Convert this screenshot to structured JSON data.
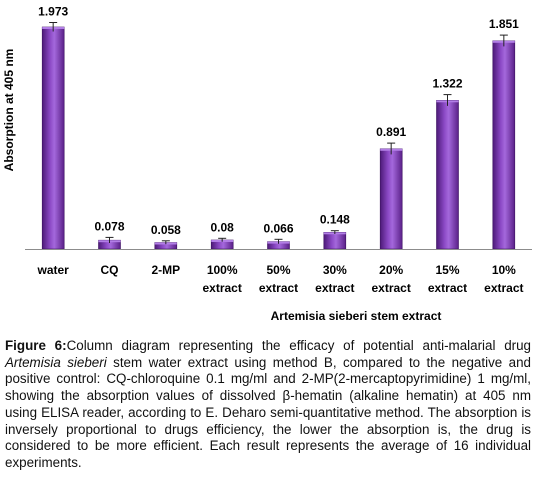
{
  "chart_data": {
    "type": "bar",
    "categories": [
      [
        "water"
      ],
      [
        "CQ"
      ],
      [
        "2-MP"
      ],
      [
        "100%",
        "extract"
      ],
      [
        "50%",
        "extract"
      ],
      [
        "30%",
        "extract"
      ],
      [
        "20%",
        "extract"
      ],
      [
        "15%",
        "extract"
      ],
      [
        "10%",
        "extract"
      ]
    ],
    "values": [
      1.973,
      0.078,
      0.058,
      0.08,
      0.066,
      0.148,
      0.891,
      1.322,
      1.851
    ],
    "value_labels": [
      "1.973",
      "0.078",
      "0.058",
      "0.08",
      "0.066",
      "0.148",
      "0.891",
      "1.322",
      "1.851"
    ],
    "errors": [
      0.04,
      0.025,
      0.015,
      0.015,
      0.02,
      0.015,
      0.05,
      0.05,
      0.05
    ],
    "ylabel": "Absorption at 405 nm",
    "xlabel": "Artemisia sieberi stem extract",
    "ylim": [
      0,
      2.0
    ],
    "bar_color": "#7030a0",
    "grid": false
  },
  "caption": {
    "label": "Figure 6:",
    "text_before_italic": "Column diagram representing the efficacy of potential anti-malarial drug ",
    "italic": "Artemisia sieberi",
    "text_after_italic": " stem water extract using method B, compared to the negative and positive control: CQ-chloroquine 0.1 mg/ml and 2-MP(2-mercaptopyrimidine) 1 mg/ml, showing the absorption values of dissolved β-hematin (alkaline hematin) at 405 nm using ELISA reader, according to E. Deharo semi-quantitative method. The absorption is inversely proportional to drugs efficiency, the lower the absorption is, the drug is considered to be more efficient. Each result represents the average of 16 individual experiments."
  }
}
